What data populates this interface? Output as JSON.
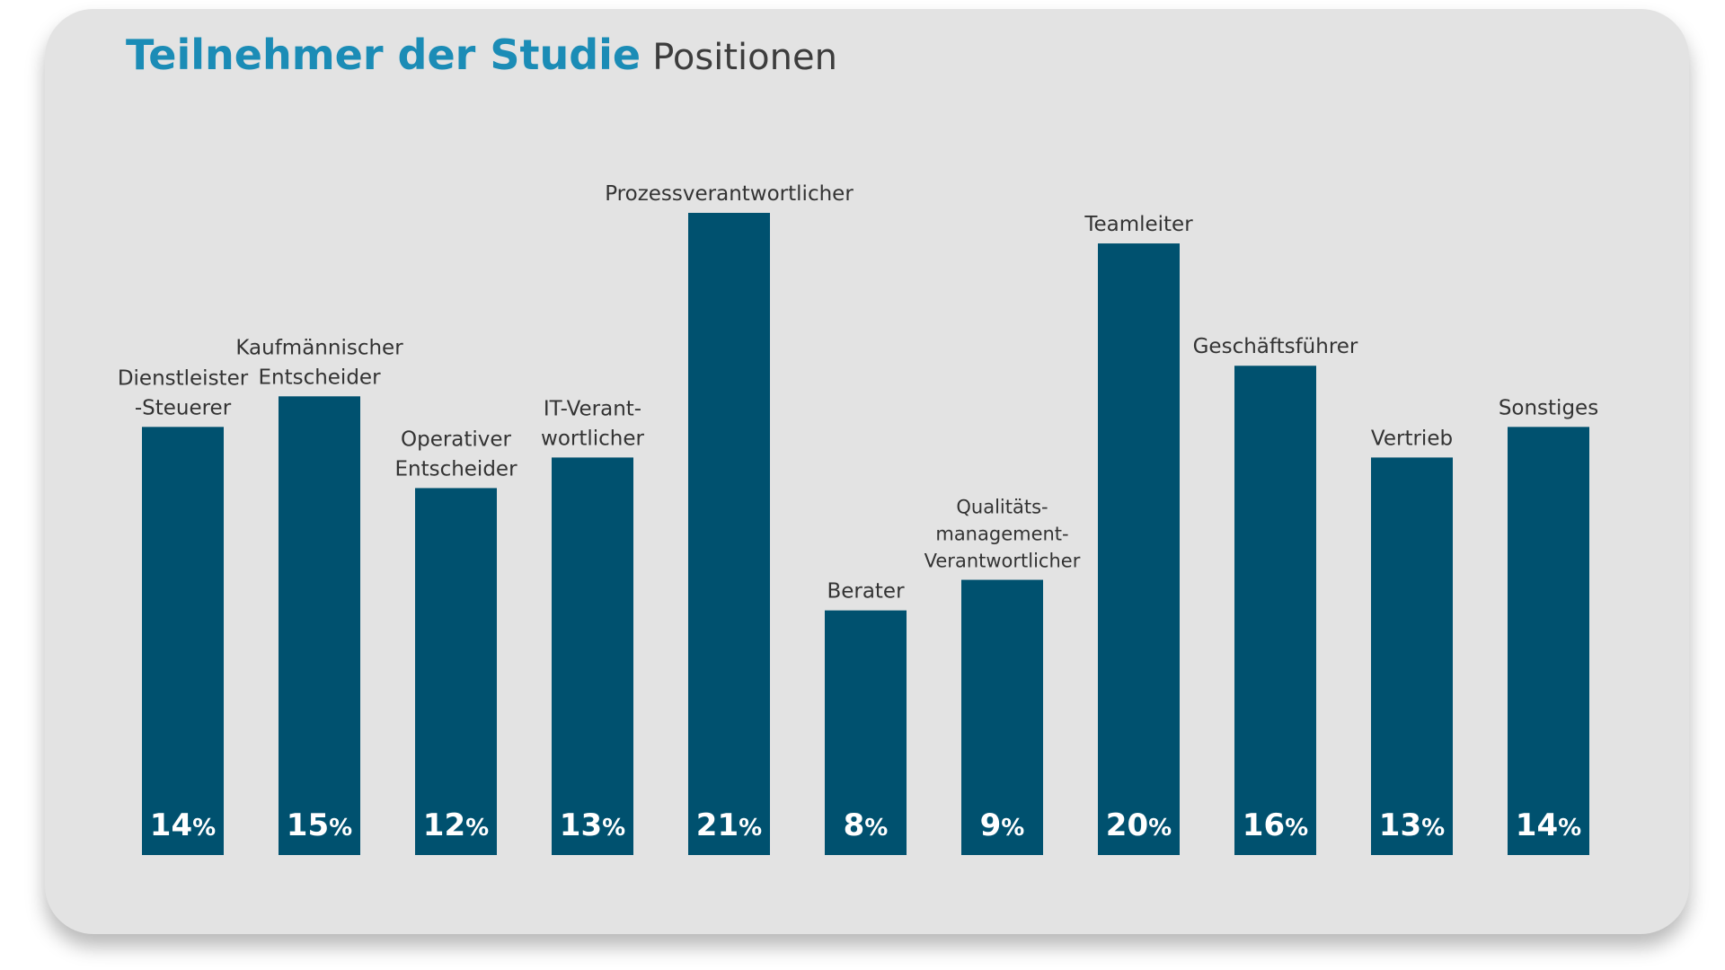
{
  "header": {
    "title": "Teilnehmer der Studie",
    "subtitle": "Positionen"
  },
  "chart_data": {
    "type": "bar",
    "title": "Teilnehmer der Studie",
    "subtitle": "Positionen",
    "categories": [
      "Dienstleister -Steuerer",
      "Kaufmännischer Entscheider",
      "Operativer Entscheider",
      "IT-Verant- wortlicher",
      "Prozessverantwortlicher",
      "Berater",
      "Qualitäts- management- Verantwortlicher",
      "Teamleiter",
      "Geschäftsführer",
      "Vertrieb",
      "Sonstiges"
    ],
    "label_lines": [
      [
        "Dienstleister",
        "-Steuerer"
      ],
      [
        "Kaufmännischer",
        "Entscheider"
      ],
      [
        "Operativer",
        "Entscheider"
      ],
      [
        "IT-Verant-",
        "wortlicher"
      ],
      [
        "Prozessverantwortlicher"
      ],
      [
        "Berater"
      ],
      [
        "Qualitäts-",
        "management-",
        "Verantwortlicher"
      ],
      [
        "Teamleiter"
      ],
      [
        "Geschäftsführer"
      ],
      [
        "Vertrieb"
      ],
      [
        "Sonstiges"
      ]
    ],
    "values": [
      14,
      15,
      12,
      13,
      21,
      8,
      9,
      20,
      16,
      13,
      14
    ],
    "value_suffix": "%",
    "xlabel": "",
    "ylabel": "",
    "ylim": [
      0,
      21
    ],
    "grid": false,
    "legend": "none",
    "bar_color": "#00516f",
    "value_label_color": "#ffffff"
  }
}
